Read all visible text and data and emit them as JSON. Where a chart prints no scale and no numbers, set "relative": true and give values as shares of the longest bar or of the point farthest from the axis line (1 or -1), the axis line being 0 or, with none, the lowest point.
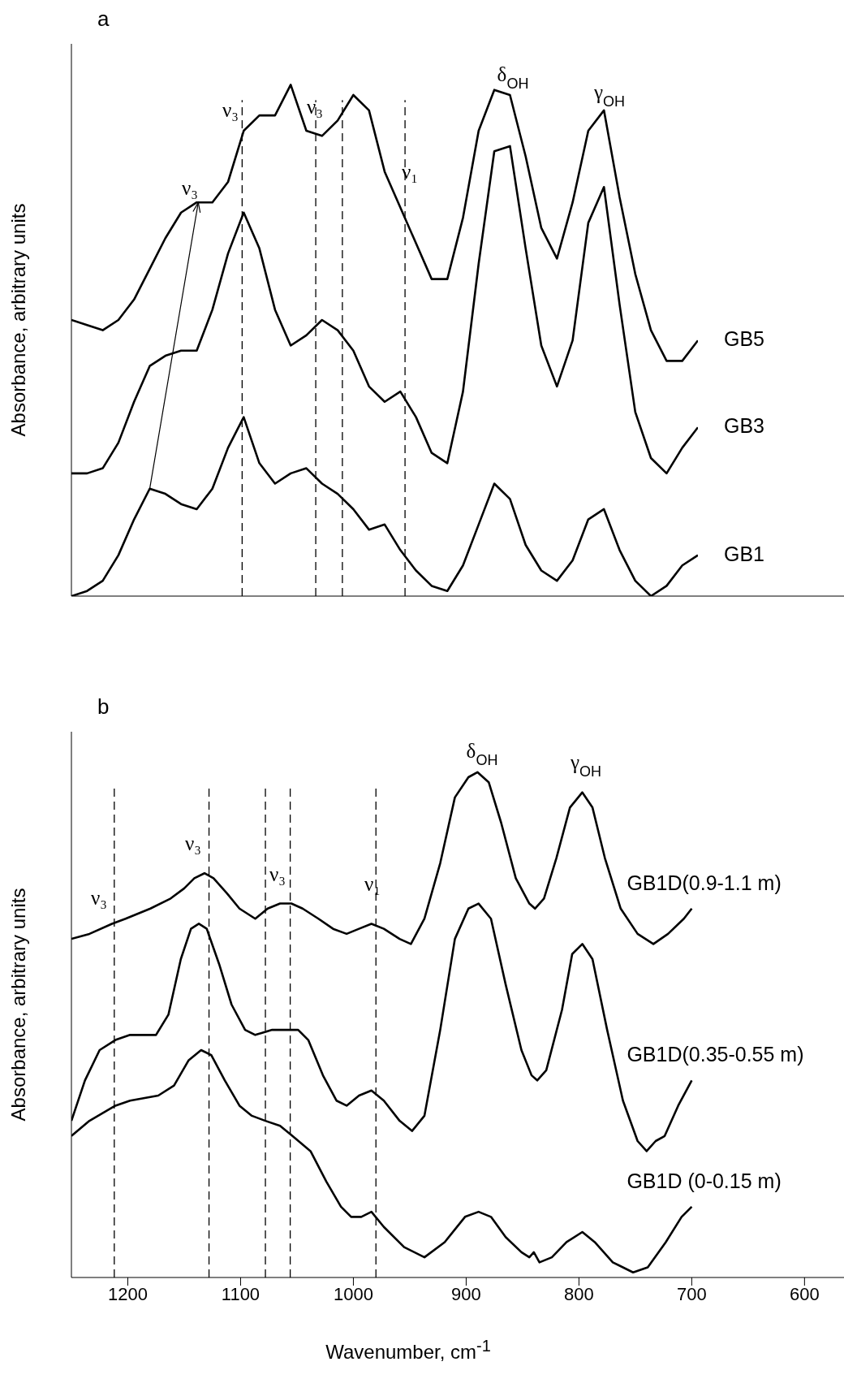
{
  "chart_data": [
    {
      "type": "line",
      "title": "a",
      "ylabel": "Absorbance, arbitrary units",
      "relative": true,
      "tick_labels": false,
      "categories": [
        null,
        null,
        null,
        null,
        null,
        null,
        null,
        null,
        null,
        null,
        null,
        null,
        null,
        null,
        null,
        null,
        null,
        null,
        null,
        null,
        null,
        null,
        null,
        null,
        null,
        null,
        null,
        null,
        null,
        null,
        null,
        null,
        null,
        null,
        null,
        null,
        null,
        null,
        null,
        null,
        null
      ],
      "series": [
        {
          "name": "GB5",
          "color": "#000000",
          "values": [
            0.54,
            0.53,
            0.52,
            0.54,
            0.58,
            0.64,
            0.7,
            0.75,
            0.77,
            0.77,
            0.81,
            0.91,
            0.94,
            0.94,
            1.0,
            0.91,
            0.9,
            0.93,
            0.98,
            0.95,
            0.83,
            0.76,
            0.69,
            0.62,
            0.62,
            0.74,
            0.91,
            0.99,
            0.98,
            0.86,
            0.72,
            0.66,
            0.77,
            0.91,
            0.95,
            0.78,
            0.63,
            0.52,
            0.46,
            0.46,
            0.5
          ]
        },
        {
          "name": "GB3",
          "color": "#000000",
          "values": [
            0.24,
            0.24,
            0.25,
            0.3,
            0.38,
            0.45,
            0.47,
            0.48,
            0.48,
            0.56,
            0.67,
            0.75,
            0.68,
            0.56,
            0.49,
            0.51,
            0.54,
            0.52,
            0.48,
            0.41,
            0.38,
            0.4,
            0.35,
            0.28,
            0.26,
            0.4,
            0.65,
            0.87,
            0.88,
            0.68,
            0.49,
            0.41,
            0.5,
            0.73,
            0.8,
            0.57,
            0.36,
            0.27,
            0.24,
            0.29,
            0.33
          ]
        },
        {
          "name": "GB1",
          "color": "#000000",
          "values": [
            0,
            0.01,
            0.03,
            0.08,
            0.15,
            0.21,
            0.2,
            0.18,
            0.17,
            0.21,
            0.29,
            0.35,
            0.26,
            0.22,
            0.24,
            0.25,
            0.22,
            0.2,
            0.17,
            0.13,
            0.14,
            0.09,
            0.05,
            0.02,
            0.01,
            0.06,
            0.14,
            0.22,
            0.19,
            0.1,
            0.05,
            0.03,
            0.07,
            0.15,
            0.17,
            0.09,
            0.03,
            0,
            0.02,
            0.06,
            0.08
          ]
        }
      ],
      "annotations": [
        "ν₃",
        "ν₃",
        "ν₃",
        "ν₁",
        "δ$_{OH}$",
        "γ$_{OH}$"
      ]
    },
    {
      "type": "line",
      "title": "b",
      "xlabel": "Wavenumber, cm$^{-1}$",
      "ylabel": "Absorbance, arbitrary units",
      "relative": true,
      "tick_labels": "x",
      "xlim": [
        1250,
        565
      ],
      "xticks": [
        1200,
        1100,
        1000,
        900,
        800,
        700,
        600
      ],
      "series": [
        {
          "name": "GB1D(0.9-1.1 m)",
          "color": "#000000",
          "x": [
            1250,
            1234,
            1214,
            1202,
            1180,
            1162,
            1150,
            1141,
            1132,
            1124,
            1112,
            1101,
            1087,
            1076,
            1065,
            1055,
            1045,
            1031,
            1018,
            1006,
            995,
            984,
            973,
            959,
            949,
            937,
            923,
            910,
            898,
            890,
            880,
            869,
            856,
            844,
            839,
            831,
            820,
            808,
            797,
            788,
            777,
            763,
            748,
            734,
            721,
            707,
            700
          ],
          "values": [
            0.67,
            0.68,
            0.7,
            0.71,
            0.73,
            0.75,
            0.77,
            0.79,
            0.8,
            0.79,
            0.76,
            0.73,
            0.71,
            0.73,
            0.74,
            0.74,
            0.73,
            0.71,
            0.69,
            0.68,
            0.69,
            0.7,
            0.69,
            0.67,
            0.66,
            0.71,
            0.82,
            0.95,
            0.99,
            1.0,
            0.98,
            0.9,
            0.79,
            0.74,
            0.73,
            0.75,
            0.83,
            0.93,
            0.96,
            0.93,
            0.83,
            0.73,
            0.68,
            0.66,
            0.68,
            0.71,
            0.73
          ]
        },
        {
          "name": "GB1D(0.35-0.55 m)",
          "color": "#000000",
          "x": [
            1250,
            1238,
            1225,
            1211,
            1198,
            1175,
            1164,
            1153,
            1144,
            1137,
            1130,
            1119,
            1108,
            1096,
            1087,
            1072,
            1058,
            1049,
            1040,
            1027,
            1015,
            1006,
            995,
            984,
            973,
            959,
            948,
            937,
            923,
            910,
            898,
            889,
            878,
            865,
            851,
            842,
            837,
            829,
            815,
            806,
            797,
            788,
            775,
            761,
            748,
            740,
            732,
            724,
            712,
            700
          ],
          "values": [
            0.31,
            0.39,
            0.45,
            0.47,
            0.48,
            0.48,
            0.52,
            0.63,
            0.69,
            0.7,
            0.69,
            0.62,
            0.54,
            0.49,
            0.48,
            0.49,
            0.49,
            0.49,
            0.47,
            0.4,
            0.35,
            0.34,
            0.36,
            0.37,
            0.35,
            0.31,
            0.29,
            0.32,
            0.49,
            0.67,
            0.73,
            0.74,
            0.71,
            0.58,
            0.45,
            0.4,
            0.39,
            0.41,
            0.53,
            0.64,
            0.66,
            0.63,
            0.49,
            0.35,
            0.27,
            0.25,
            0.27,
            0.28,
            0.34,
            0.39
          ]
        },
        {
          "name": "GB1D (0-0.15 m)",
          "color": "#000000",
          "x": [
            1250,
            1234,
            1211,
            1198,
            1173,
            1159,
            1146,
            1135,
            1126,
            1114,
            1101,
            1090,
            1078,
            1065,
            1054,
            1038,
            1024,
            1011,
            1002,
            993,
            984,
            973,
            955,
            937,
            919,
            901,
            889,
            878,
            865,
            851,
            844,
            840,
            835,
            824,
            811,
            797,
            786,
            770,
            752,
            739,
            723,
            709,
            700
          ],
          "values": [
            0.28,
            0.31,
            0.34,
            0.35,
            0.36,
            0.38,
            0.43,
            0.45,
            0.44,
            0.39,
            0.34,
            0.32,
            0.31,
            0.3,
            0.28,
            0.25,
            0.19,
            0.14,
            0.12,
            0.12,
            0.13,
            0.1,
            0.06,
            0.04,
            0.07,
            0.12,
            0.13,
            0.12,
            0.08,
            0.05,
            0.04,
            0.05,
            0.03,
            0.04,
            0.07,
            0.09,
            0.07,
            0.03,
            0.01,
            0.02,
            0.07,
            0.12,
            0.14
          ]
        }
      ],
      "ref_lines": [
        {
          "axis": "x",
          "value": 1212,
          "color": "#000000",
          "line_style": "dashed"
        },
        {
          "axis": "x",
          "value": 1128,
          "color": "#000000",
          "line_style": "dashed"
        },
        {
          "axis": "x",
          "value": 1078,
          "color": "#000000",
          "line_style": "dashed"
        },
        {
          "axis": "x",
          "value": 1056,
          "color": "#000000",
          "line_style": "dashed"
        },
        {
          "axis": "x",
          "value": 980,
          "color": "#000000",
          "line_style": "dashed"
        }
      ],
      "annotations": [
        "ν₃",
        "ν₃",
        "ν₃",
        "ν₁",
        "δ$_{OH}$",
        "γ$_{OH}$"
      ]
    }
  ]
}
